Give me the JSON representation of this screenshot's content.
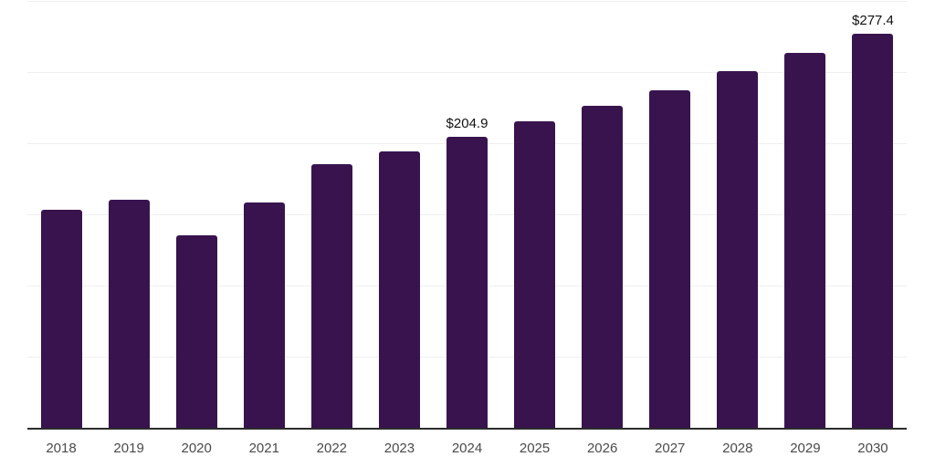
{
  "chart_data": {
    "type": "bar",
    "title": "",
    "xlabel": "",
    "ylabel": "",
    "categories": [
      "2018",
      "2019",
      "2020",
      "2021",
      "2022",
      "2023",
      "2024",
      "2025",
      "2026",
      "2027",
      "2028",
      "2029",
      "2030"
    ],
    "values": [
      154,
      161,
      136,
      159,
      186,
      195,
      204.9,
      216,
      227,
      238,
      251,
      264,
      277.4
    ],
    "data_labels": [
      "",
      "",
      "",
      "",
      "",
      "",
      "$204.9",
      "",
      "",
      "",
      "",
      "",
      "$277.4"
    ],
    "ylim": [
      0,
      300
    ],
    "gridline_step": 50,
    "grid": true,
    "legend": false,
    "y_axis_labels_visible": false
  },
  "style": {
    "bar_color": "#38134E",
    "axis_color": "#2B2B2B",
    "gridline_color": "#EFEFEF",
    "tick_label_color": "#4A4A4A",
    "data_label_color": "#111111",
    "background": "#FFFFFF"
  }
}
